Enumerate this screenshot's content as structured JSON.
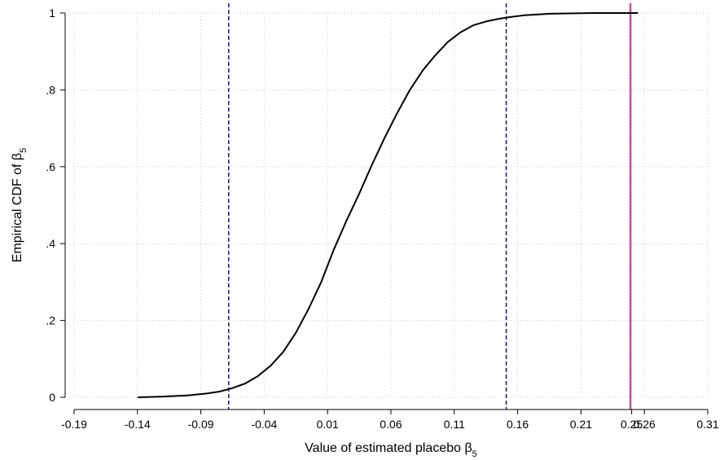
{
  "chart_data": {
    "type": "line",
    "title": "",
    "xlabel": {
      "main": "Value of estimated placebo β",
      "sub": "5"
    },
    "ylabel": {
      "main": "Empirical CDF of β",
      "sub": "5"
    },
    "xlim": [
      -0.19,
      0.31
    ],
    "ylim": [
      0,
      1
    ],
    "grid": true,
    "x_ticks": [
      {
        "value": -0.19,
        "label": "-0.19"
      },
      {
        "value": -0.14,
        "label": "-0.14"
      },
      {
        "value": -0.09,
        "label": "-0.09"
      },
      {
        "value": -0.04,
        "label": "-0.04"
      },
      {
        "value": 0.01,
        "label": "0.01"
      },
      {
        "value": 0.06,
        "label": "0.06"
      },
      {
        "value": 0.11,
        "label": "0.11"
      },
      {
        "value": 0.16,
        "label": "0.16"
      },
      {
        "value": 0.21,
        "label": "0.21"
      },
      {
        "value": 0.25,
        "label": "0.25"
      },
      {
        "value": 0.26,
        "label": "0.26"
      },
      {
        "value": 0.31,
        "label": "0.31"
      }
    ],
    "y_ticks": [
      {
        "value": 0,
        "label": "0"
      },
      {
        "value": 0.2,
        "label": ".2"
      },
      {
        "value": 0.4,
        "label": ".4"
      },
      {
        "value": 0.6,
        "label": ".6"
      },
      {
        "value": 0.8,
        "label": ".8"
      },
      {
        "value": 1,
        "label": "1"
      }
    ],
    "series": [
      {
        "color": "#000000",
        "x": [
          -0.14,
          -0.12,
          -0.1,
          -0.085,
          -0.075,
          -0.065,
          -0.055,
          -0.045,
          -0.035,
          -0.025,
          -0.015,
          -0.005,
          0.005,
          0.015,
          0.025,
          0.035,
          0.045,
          0.055,
          0.065,
          0.075,
          0.085,
          0.095,
          0.105,
          0.115,
          0.125,
          0.135,
          0.145,
          0.155,
          0.165,
          0.175,
          0.185,
          0.2,
          0.22,
          0.24,
          0.255
        ],
        "y": [
          0.0,
          0.002,
          0.005,
          0.01,
          0.015,
          0.024,
          0.036,
          0.055,
          0.082,
          0.118,
          0.168,
          0.23,
          0.3,
          0.385,
          0.46,
          0.53,
          0.605,
          0.675,
          0.74,
          0.8,
          0.85,
          0.89,
          0.925,
          0.95,
          0.968,
          0.978,
          0.985,
          0.99,
          0.994,
          0.996,
          0.998,
          0.999,
          1.0,
          1.0,
          1.0
        ]
      }
    ],
    "reference_lines": [
      {
        "x": -0.068,
        "color": "#00008b",
        "style": "dashed"
      },
      {
        "x": 0.151,
        "color": "#00008b",
        "style": "dashed"
      },
      {
        "x": 0.249,
        "color": "#c4509a",
        "style": "solid"
      }
    ]
  }
}
